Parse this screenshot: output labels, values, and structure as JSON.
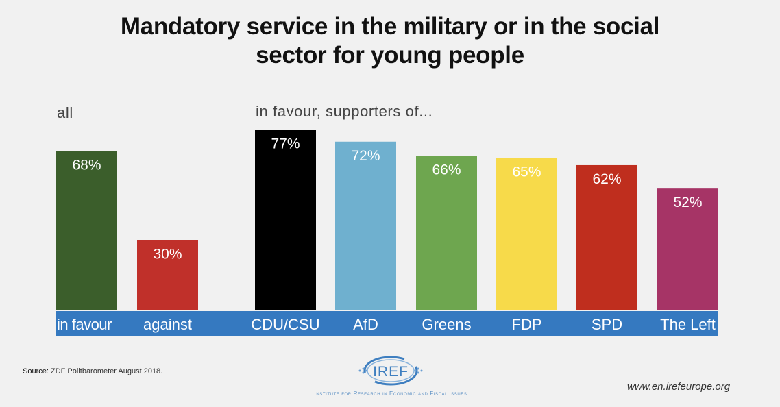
{
  "chart_data": {
    "type": "bar",
    "title": "Mandatory service in the military or in the social sector for young people",
    "title_lines": [
      "Mandatory service in the military or in the social",
      "sector for young people"
    ],
    "xlabel": "",
    "ylabel": "",
    "ylim": [
      0,
      100
    ],
    "grid": false,
    "legend": "none",
    "value_suffix": "%",
    "groups": [
      {
        "label": "all",
        "categories": [
          "in favour",
          "against"
        ]
      },
      {
        "label": "in favour,  supporters of...",
        "categories": [
          "CDU/CSU",
          "AfD",
          "Greens",
          "FDP",
          "SPD",
          "The Left"
        ]
      }
    ],
    "categories": [
      "in favour",
      "against",
      "CDU/CSU",
      "AfD",
      "Greens",
      "FDP",
      "SPD",
      "The Left"
    ],
    "values": [
      68,
      30,
      77,
      72,
      66,
      65,
      62,
      52
    ],
    "data_labels": [
      "68%",
      "30%",
      "77%",
      "72%",
      "66%",
      "65%",
      "62%",
      "52%"
    ],
    "colors": [
      "#3b5e2b",
      "#c0302a",
      "#000000",
      "#6fb0cf",
      "#6ea64f",
      "#f7da4a",
      "#bf2e1e",
      "#a63466"
    ],
    "category_band_color": "#3579c0"
  },
  "footer": {
    "source_label": "Source:",
    "source_text": "ZDF Politbarometer August 2018.",
    "logo_text": "IREF",
    "logo_subtitle": "Institute for Research in Economic and Fiscal issues",
    "website": "www.en.irefeurope.org"
  }
}
